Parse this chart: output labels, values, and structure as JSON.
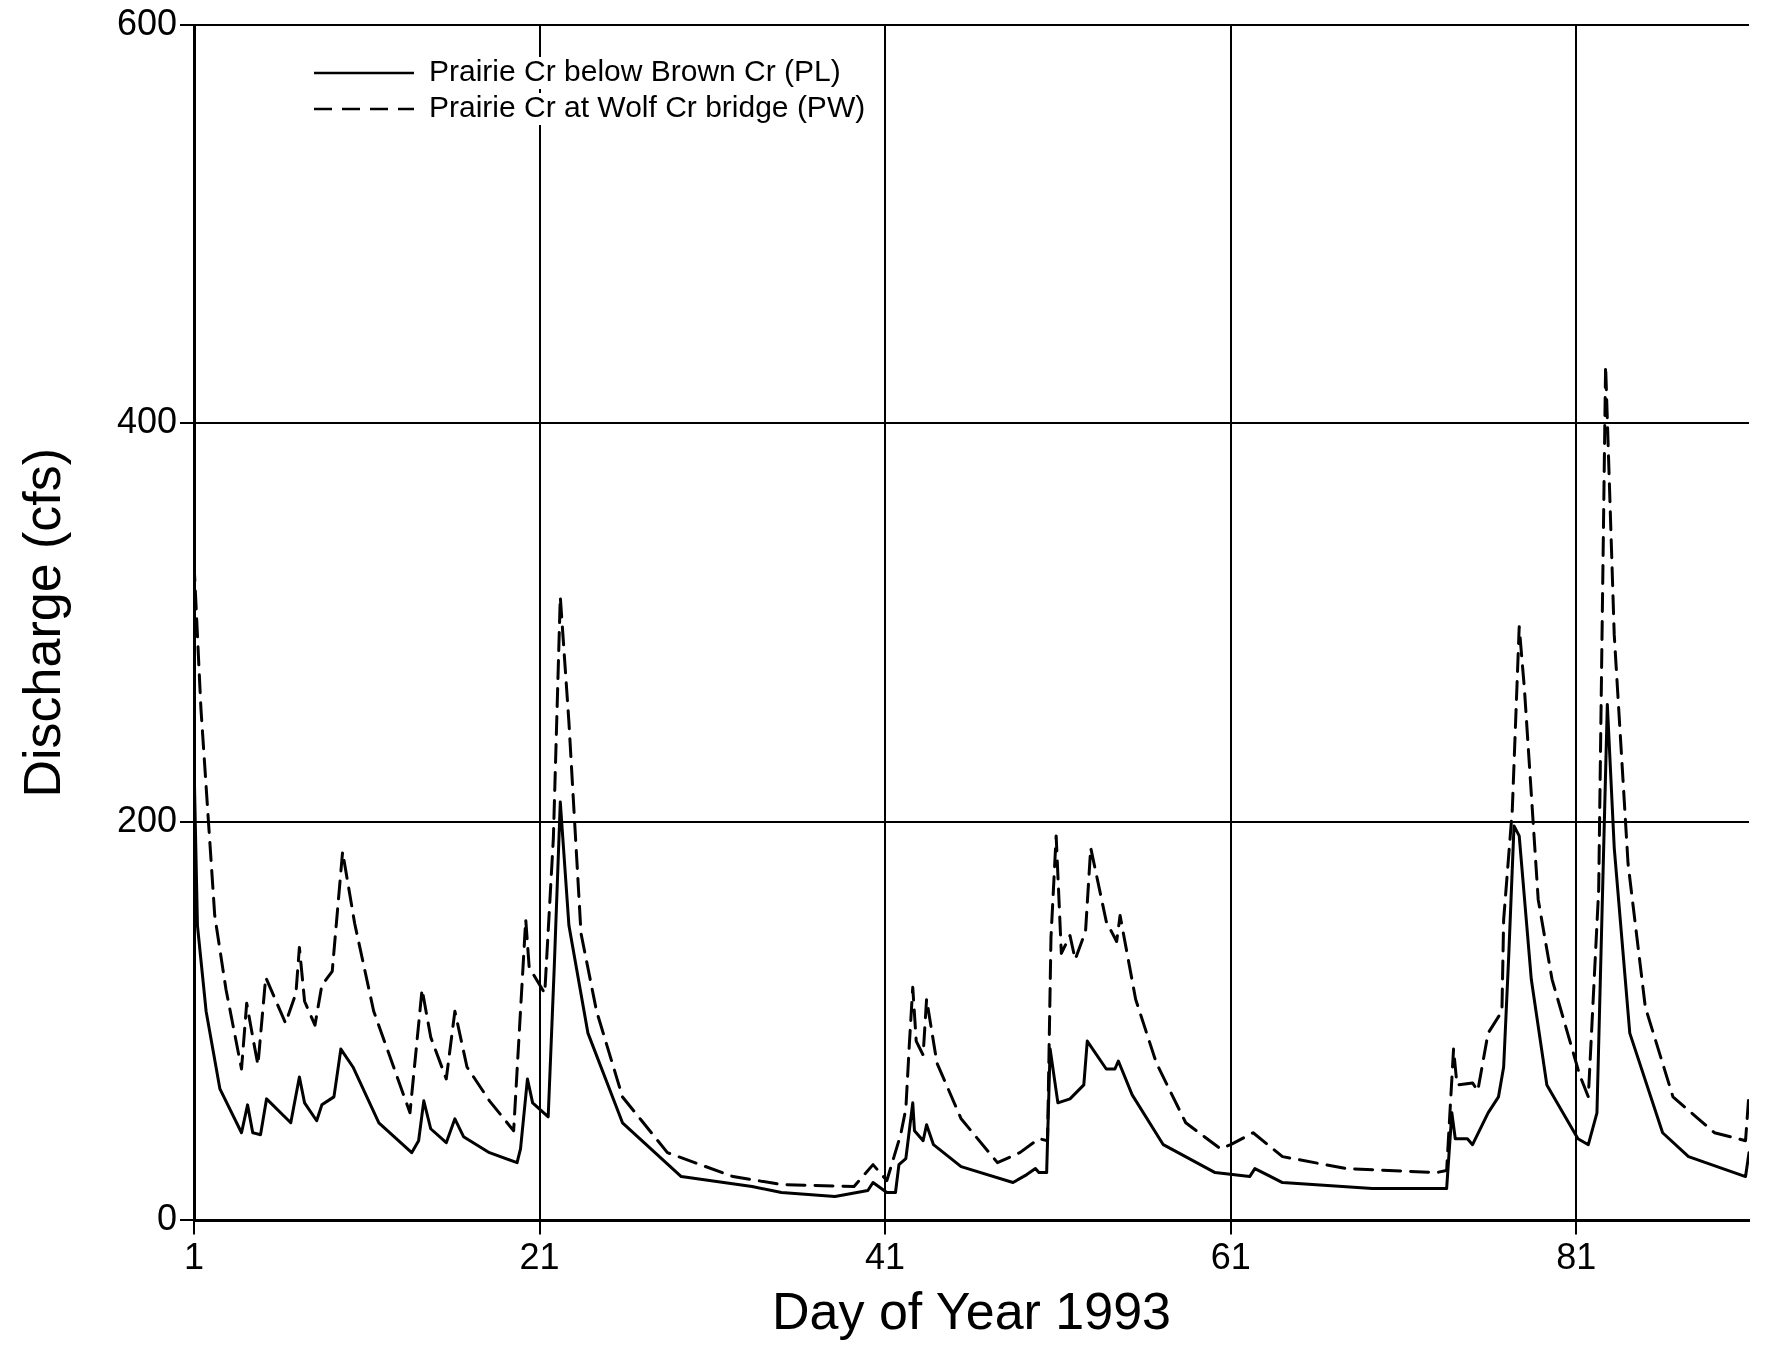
{
  "chart_data": {
    "type": "line",
    "xlabel": "Day of Year 1993",
    "ylabel": "Discharge (cfs)",
    "xlim": [
      1,
      91
    ],
    "ylim": [
      0,
      600
    ],
    "xticks": [
      1,
      21,
      41,
      61,
      81
    ],
    "yticks": [
      0,
      200,
      400,
      600
    ],
    "grid": true,
    "legend": "top left",
    "marker": "none",
    "series": [
      {
        "name": "Prairie Cr below Brown Cr (PL)",
        "color": "#000000",
        "line_style": "solid",
        "x": [
          1,
          1.2,
          1.7,
          2.5,
          3.75,
          4.1,
          4.4,
          4.85,
          5.2,
          6.6,
          7.1,
          7.4,
          8.1,
          8.4,
          9.1,
          9.5,
          10.2,
          11.7,
          13.6,
          14.0,
          14.3,
          14.7,
          15.6,
          16.1,
          16.6,
          18.1,
          19.7,
          19.9,
          20.3,
          20.6,
          21.5,
          21.85,
          22.2,
          22.7,
          23.8,
          25.8,
          29.2,
          33.3,
          35.0,
          38.1,
          40.0,
          40.3,
          41.1,
          41.6,
          41.8,
          42.2,
          42.4,
          42.6,
          42.7,
          43.2,
          43.4,
          43.8,
          45.4,
          48.4,
          49.2,
          49.7,
          49.9,
          50.35,
          50.55,
          51.0,
          51.7,
          52.5,
          52.7,
          53.8,
          54.3,
          54.5,
          55.3,
          57.1,
          60.1,
          62.1,
          62.4,
          64.0,
          69.2,
          73.5,
          73.8,
          74.0,
          74.7,
          75.0,
          75.9,
          76.5,
          76.8,
          77.1,
          77.4,
          77.7,
          78.4,
          79.3,
          81.1,
          81.7,
          82.2,
          82.8,
          83.2,
          84.1,
          86.0,
          87.5,
          90.8,
          91
        ],
        "values": [
          230,
          148,
          105,
          66,
          44,
          58,
          44,
          43,
          61,
          49,
          72,
          59,
          50,
          58,
          62,
          86,
          77,
          49,
          34,
          40,
          60,
          46,
          39,
          51,
          42,
          34,
          29,
          36,
          71,
          59,
          52,
          127,
          210,
          148,
          94,
          49,
          22,
          17,
          14,
          12,
          15,
          19,
          14,
          14,
          28,
          31,
          45,
          59,
          45,
          40,
          48,
          38,
          27,
          19,
          23,
          26,
          24,
          24,
          86,
          59,
          61,
          68,
          90,
          76,
          76,
          80,
          63,
          38,
          24,
          22,
          26,
          19,
          16,
          16,
          54,
          41,
          41,
          38,
          54,
          62,
          77,
          134,
          198,
          193,
          121,
          68,
          41,
          38,
          54,
          259,
          187,
          94,
          44,
          32,
          22,
          34
        ]
      },
      {
        "name": "Prairie Cr at Wolf Cr bridge (PW)",
        "color": "#000000",
        "line_style": "dashed",
        "x": [
          1,
          1.4,
          2.2,
          2.85,
          3.75,
          4.05,
          4.4,
          4.7,
          5.15,
          6.3,
          6.9,
          7.1,
          7.4,
          8.0,
          8.4,
          9.0,
          9.6,
          10.3,
          11.4,
          13.5,
          14.2,
          14.7,
          15.6,
          16.1,
          16.8,
          18.1,
          19.5,
          20.2,
          20.4,
          21.3,
          21.8,
          22.2,
          22.7,
          23.4,
          24.3,
          25.8,
          28.4,
          32.2,
          35.0,
          39.2,
          40.3,
          41.1,
          41.9,
          42.2,
          42.4,
          42.6,
          42.8,
          43.2,
          43.4,
          44.0,
          45.4,
          47.5,
          48.8,
          49.9,
          50.4,
          50.6,
          50.9,
          51.2,
          51.7,
          52.0,
          52.6,
          52.9,
          53.8,
          54.4,
          54.6,
          55.5,
          56.7,
          58.4,
          60.4,
          61,
          62.3,
          64.0,
          67.7,
          72.9,
          73.5,
          73.9,
          74.1,
          75.0,
          75.3,
          75.9,
          76.7,
          76.8,
          77.3,
          77.7,
          78.0,
          78.8,
          79.6,
          80.8,
          81.2,
          81.7,
          82.3,
          82.7,
          83.2,
          84.0,
          85.0,
          86.6,
          89.0,
          90.8,
          91
        ],
        "values": [
          330,
          257,
          153,
          116,
          76,
          109,
          92,
          78,
          122,
          99,
          114,
          137,
          110,
          98,
          118,
          125,
          185,
          149,
          105,
          54,
          116,
          92,
          71,
          105,
          77,
          60,
          45,
          151,
          127,
          114,
          192,
          313,
          250,
          144,
          105,
          62,
          34,
          22,
          18,
          17,
          28,
          20,
          43,
          56,
          88,
          117,
          90,
          83,
          111,
          79,
          51,
          29,
          34,
          41,
          40,
          142,
          193,
          134,
          143,
          131,
          145,
          187,
          150,
          140,
          153,
          111,
          79,
          49,
          36,
          38,
          44,
          32,
          26,
          24,
          25,
          86,
          68,
          69,
          65,
          94,
          105,
          151,
          206,
          298,
          267,
          161,
          121,
          85,
          73,
          62,
          166,
          429,
          294,
          179,
          107,
          62,
          44,
          40,
          64
        ]
      }
    ]
  }
}
